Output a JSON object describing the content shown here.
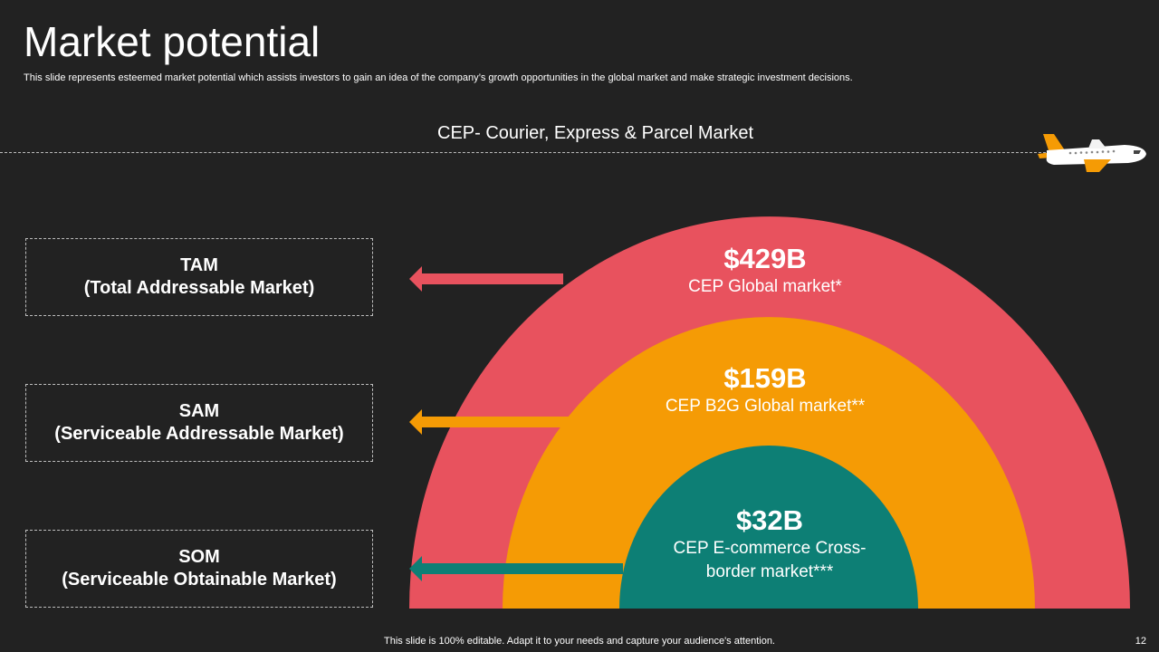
{
  "title": "Market potential",
  "subtitle": "This slide represents esteemed market potential which assists investors to gain an idea of the company’s growth opportunities in the global market and make strategic investment decisions.",
  "section_heading": "CEP- Courier, Express & Parcel Market",
  "markets": [
    {
      "abbr": "TAM",
      "full": "(Total Addressable Market)",
      "value": "$429B",
      "label": "CEP Global market*",
      "color": "#e8525e"
    },
    {
      "abbr": "SAM",
      "full": "(Serviceable Addressable Market)",
      "value": "$159B",
      "label": "CEP B2G Global market**",
      "color": "#f59b05"
    },
    {
      "abbr": "SOM",
      "full": "(Serviceable Obtainable Market)",
      "value": "$32B",
      "label_line1": "CEP E-commerce Cross-",
      "label_line2": "border market***",
      "color": "#0d7f75"
    }
  ],
  "plane_color": "#f59b05",
  "footer": "This slide is 100% editable. Adapt it to your needs and capture your audience's attention.",
  "page_number": "12"
}
